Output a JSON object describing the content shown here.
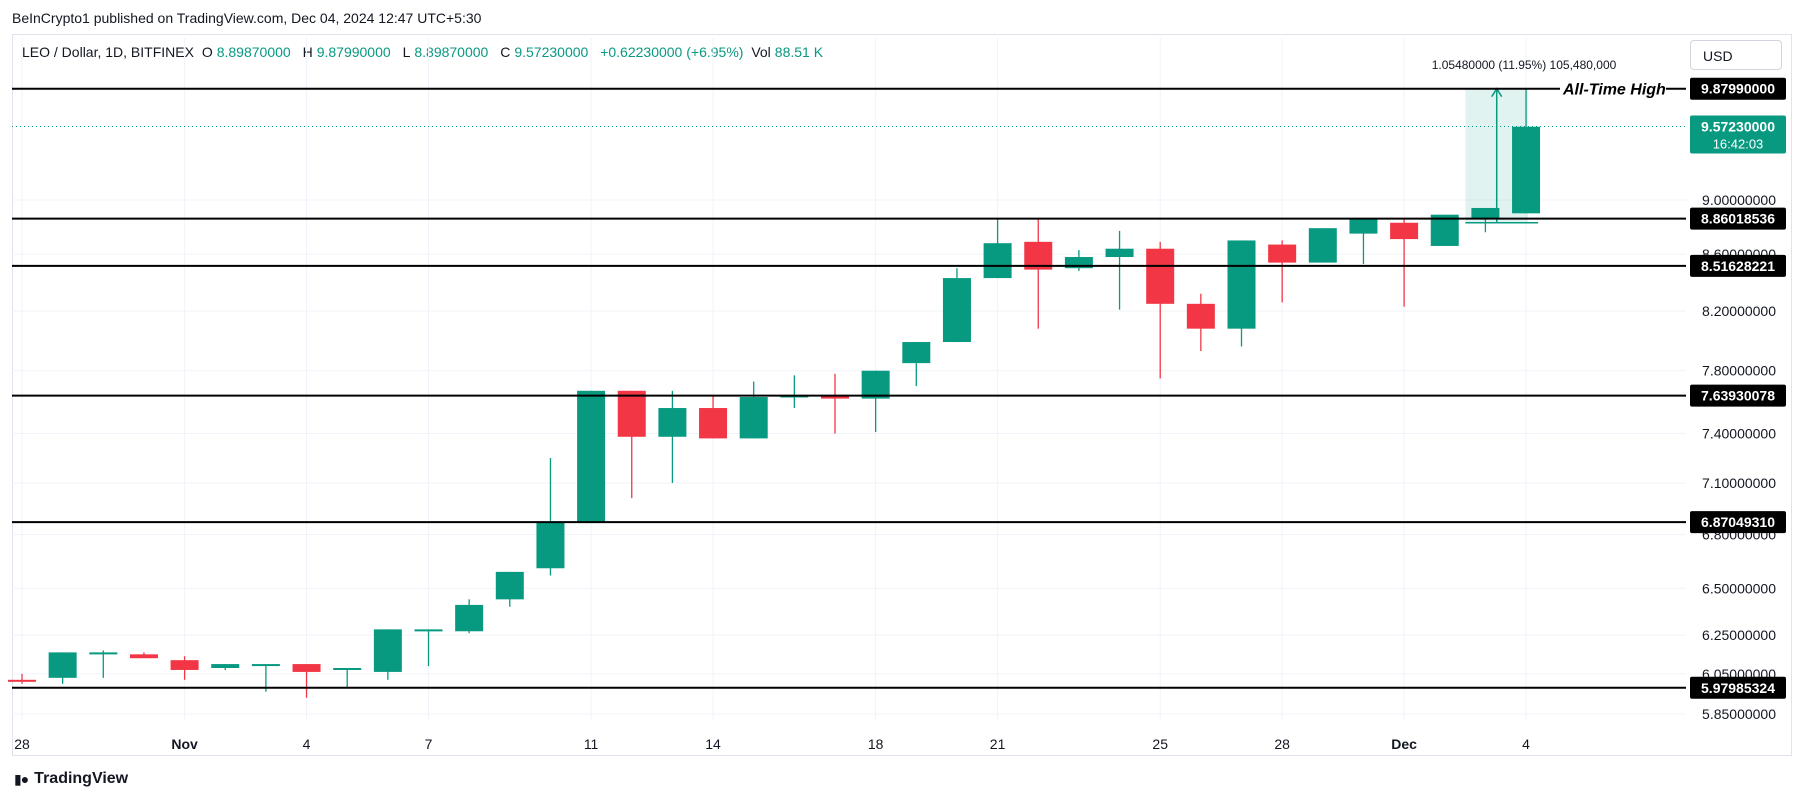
{
  "publisher_line": "BeInCrypto1 published on TradingView.com, Dec 04, 2024 12:47 UTC+5:30",
  "legend": {
    "symbol": "LEO / Dollar, 1D, BITFINEX",
    "o_label": "O",
    "o_value": "8.89870000",
    "h_label": "H",
    "h_value": "9.87990000",
    "l_label": "L",
    "l_value": "8.89870000",
    "c_label": "C",
    "c_value": "9.57230000",
    "change": "+0.62230000 (+6.95%)",
    "vol_label": "Vol",
    "vol_value": "88.51 K"
  },
  "currency_button": "USD",
  "brand": "TradingView",
  "colors": {
    "up": "#089981",
    "down": "#f23645",
    "level": "#000000",
    "grid": "#f0f3fa"
  },
  "chart_data": {
    "type": "candlestick",
    "title": "LEO / Dollar, 1D, BITFINEX",
    "price_scale": "log",
    "ylim": [
      5.8,
      10.1
    ],
    "x_ticks": [
      {
        "label": "28",
        "bar": 0
      },
      {
        "label": "Nov",
        "bar": 4
      },
      {
        "label": "4",
        "bar": 7
      },
      {
        "label": "7",
        "bar": 10
      },
      {
        "label": "11",
        "bar": 14
      },
      {
        "label": "14",
        "bar": 17
      },
      {
        "label": "18",
        "bar": 21
      },
      {
        "label": "21",
        "bar": 24
      },
      {
        "label": "25",
        "bar": 28
      },
      {
        "label": "28",
        "bar": 31
      },
      {
        "label": "Dec",
        "bar": 34
      },
      {
        "label": "4",
        "bar": 37
      }
    ],
    "y_ticks": [
      "5.85000000",
      "6.05000000",
      "6.25000000",
      "6.50000000",
      "6.80000000",
      "7.10000000",
      "7.40000000",
      "7.80000000",
      "8.20000000",
      "8.60000000",
      "9.00000000"
    ],
    "candles": [
      {
        "o": 6.02,
        "h": 6.05,
        "l": 6.0,
        "c": 6.01
      },
      {
        "o": 6.03,
        "h": 6.16,
        "l": 6.0,
        "c": 6.16
      },
      {
        "o": 6.16,
        "h": 6.17,
        "l": 6.03,
        "c": 6.16
      },
      {
        "o": 6.15,
        "h": 6.16,
        "l": 6.13,
        "c": 6.13
      },
      {
        "o": 6.12,
        "h": 6.14,
        "l": 6.02,
        "c": 6.07
      },
      {
        "o": 6.08,
        "h": 6.1,
        "l": 6.07,
        "c": 6.1
      },
      {
        "o": 6.1,
        "h": 6.1,
        "l": 5.96,
        "c": 6.1
      },
      {
        "o": 6.1,
        "h": 6.1,
        "l": 5.93,
        "c": 6.06
      },
      {
        "o": 6.07,
        "h": 6.08,
        "l": 5.98,
        "c": 6.08
      },
      {
        "o": 6.06,
        "h": 6.28,
        "l": 6.02,
        "c": 6.28
      },
      {
        "o": 6.28,
        "h": 6.28,
        "l": 6.09,
        "c": 6.28
      },
      {
        "o": 6.27,
        "h": 6.44,
        "l": 6.26,
        "c": 6.41
      },
      {
        "o": 6.44,
        "h": 6.59,
        "l": 6.4,
        "c": 6.59
      },
      {
        "o": 6.61,
        "h": 7.25,
        "l": 6.57,
        "c": 6.87
      },
      {
        "o": 6.87,
        "h": 7.67,
        "l": 6.87,
        "c": 7.67
      },
      {
        "o": 7.67,
        "h": 7.67,
        "l": 7.01,
        "c": 7.38
      },
      {
        "o": 7.38,
        "h": 7.67,
        "l": 7.1,
        "c": 7.56
      },
      {
        "o": 7.56,
        "h": 7.64,
        "l": 7.37,
        "c": 7.37
      },
      {
        "o": 7.37,
        "h": 7.73,
        "l": 7.37,
        "c": 7.63
      },
      {
        "o": 7.63,
        "h": 7.77,
        "l": 7.56,
        "c": 7.64
      },
      {
        "o": 7.64,
        "h": 7.78,
        "l": 7.4,
        "c": 7.62
      },
      {
        "o": 7.62,
        "h": 7.8,
        "l": 7.41,
        "c": 7.8
      },
      {
        "o": 7.85,
        "h": 7.99,
        "l": 7.7,
        "c": 7.99
      },
      {
        "o": 7.99,
        "h": 8.5,
        "l": 7.99,
        "c": 8.43
      },
      {
        "o": 8.43,
        "h": 8.86,
        "l": 8.43,
        "c": 8.68
      },
      {
        "o": 8.69,
        "h": 8.86,
        "l": 8.08,
        "c": 8.49
      },
      {
        "o": 8.5,
        "h": 8.63,
        "l": 8.48,
        "c": 8.58
      },
      {
        "o": 8.58,
        "h": 8.77,
        "l": 8.21,
        "c": 8.64
      },
      {
        "o": 8.64,
        "h": 8.69,
        "l": 7.75,
        "c": 8.25
      },
      {
        "o": 8.25,
        "h": 8.32,
        "l": 7.93,
        "c": 8.08
      },
      {
        "o": 8.08,
        "h": 8.7,
        "l": 7.96,
        "c": 8.7
      },
      {
        "o": 8.67,
        "h": 8.7,
        "l": 8.26,
        "c": 8.54
      },
      {
        "o": 8.54,
        "h": 8.79,
        "l": 8.54,
        "c": 8.79
      },
      {
        "o": 8.75,
        "h": 8.86,
        "l": 8.53,
        "c": 8.86
      },
      {
        "o": 8.83,
        "h": 8.86,
        "l": 8.23,
        "c": 8.71
      },
      {
        "o": 8.66,
        "h": 8.88,
        "l": 8.66,
        "c": 8.89
      },
      {
        "o": 8.86,
        "h": 8.94,
        "l": 8.76,
        "c": 8.94
      },
      {
        "o": 8.9,
        "h": 9.88,
        "l": 8.9,
        "c": 9.57
      }
    ],
    "levels": [
      {
        "value": 9.8799,
        "label": "9.87990000"
      },
      {
        "value": 8.86018536,
        "label": "8.86018536"
      },
      {
        "value": 8.51628221,
        "label": "8.51628221"
      },
      {
        "value": 7.63930078,
        "label": "7.63930078"
      },
      {
        "value": 6.8704931,
        "label": "6.87049310"
      },
      {
        "value": 5.97985324,
        "label": "5.97985324"
      }
    ],
    "ath_annotation": "All-Time High",
    "current_price": {
      "value": 9.5723,
      "label": "9.57230000",
      "countdown": "16:42:03"
    },
    "measure": {
      "bar_from": 36,
      "bar_to": 37,
      "low": 8.83,
      "high": 9.88,
      "label": "1.05480000 (11.95%) 105,480,000"
    }
  }
}
